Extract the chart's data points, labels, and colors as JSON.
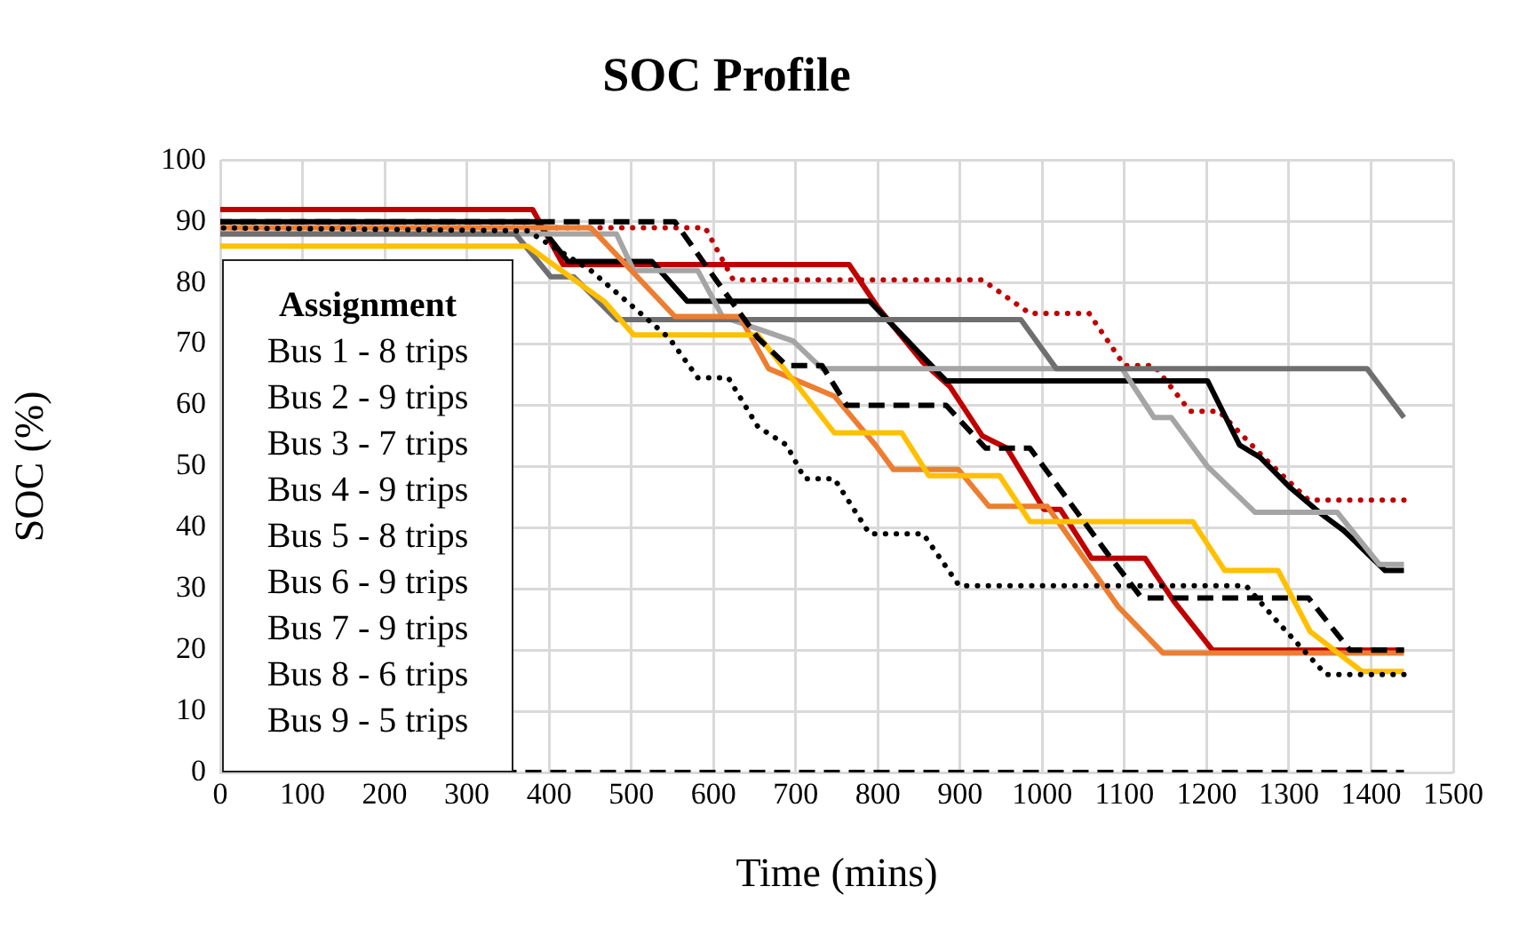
{
  "chart_data": {
    "type": "line",
    "title": "SOC Profile",
    "xlabel": "Time (mins)",
    "ylabel": "SOC (%)",
    "xlim": [
      0,
      1500
    ],
    "xticks": [
      0,
      100,
      200,
      300,
      400,
      500,
      600,
      700,
      800,
      900,
      1000,
      1100,
      1200,
      1300,
      1400,
      1500
    ],
    "ylim": [
      0,
      100
    ],
    "yticks": [
      0,
      10,
      20,
      30,
      40,
      50,
      60,
      70,
      80,
      90,
      100
    ],
    "grid": true,
    "marker": "none",
    "annotations": [
      "Assignment",
      "Bus 1 - 8 trips",
      "Bus 2 - 9 trips",
      "Bus 3 - 7 trips",
      "Bus 4 - 9 trips",
      "Bus 5 - 8 trips",
      "Bus 6 - 9 trips",
      "Bus 7 - 9 trips",
      "Bus 8 - 6 trips",
      "Bus 9 - 5 trips"
    ],
    "series": [
      {
        "color": "#c00000",
        "line_style": "solid",
        "x": [
          0,
          380,
          417,
          765,
          800,
          855,
          888,
          927,
          957,
          1002,
          1022,
          1060,
          1125,
          1160,
          1207,
          1440
        ],
        "values": [
          92,
          92,
          83,
          83,
          76,
          67,
          63,
          55,
          53,
          43,
          43,
          35,
          35,
          28,
          20,
          20
        ]
      },
      {
        "color": "#c00000",
        "line_style": "dotted",
        "x": [
          0,
          590,
          624,
          927,
          985,
          1057,
          1100,
          1136,
          1180,
          1215,
          1273,
          1324,
          1440
        ],
        "values": [
          89,
          89,
          80.5,
          80.5,
          75,
          75,
          66.5,
          66.5,
          59,
          59,
          51,
          44.5,
          44.5
        ]
      },
      {
        "color": "#000000",
        "line_style": "solid",
        "x": [
          0,
          385,
          423,
          525,
          568,
          790,
          883,
          1201,
          1240,
          1265,
          1302,
          1337,
          1367,
          1417,
          1440
        ],
        "values": [
          90,
          90,
          83.5,
          83.5,
          77,
          77,
          64,
          64,
          53.5,
          51.5,
          46.5,
          42.5,
          39.5,
          33,
          33
        ]
      },
      {
        "color": "#a5a5a5",
        "line_style": "solid",
        "x": [
          0,
          482,
          503,
          581,
          611,
          697,
          732,
          1097,
          1136,
          1157,
          1201,
          1259,
          1359,
          1410,
          1440
        ],
        "values": [
          88,
          88,
          82,
          82,
          74.5,
          70.5,
          66,
          66,
          58,
          58,
          50,
          42.5,
          42.5,
          34,
          34
        ]
      },
      {
        "color": "#6f6f6f",
        "line_style": "solid",
        "x": [
          0,
          359,
          402,
          430,
          482,
          974,
          1017,
          1395,
          1440
        ],
        "values": [
          88,
          88,
          81,
          81,
          74,
          74,
          66,
          66,
          58
        ]
      },
      {
        "color": "#ed7d31",
        "line_style": "solid",
        "x": [
          0,
          451,
          553,
          632,
          667,
          747,
          797,
          819,
          898,
          935,
          1006,
          1093,
          1147,
          1440
        ],
        "values": [
          89,
          89,
          74.5,
          74.5,
          66,
          61.5,
          53.5,
          49.5,
          49.5,
          43.5,
          43.5,
          27,
          19.5,
          19.5
        ]
      },
      {
        "color": "#ffc000",
        "line_style": "solid",
        "x": [
          0,
          374,
          467,
          503,
          654,
          747,
          829,
          862,
          948,
          985,
          1183,
          1222,
          1287,
          1326,
          1389,
          1440
        ],
        "values": [
          86,
          86,
          77,
          71.5,
          71.5,
          55.5,
          55.5,
          48.5,
          48.5,
          41,
          41,
          33,
          33,
          23,
          16.5,
          16.5
        ]
      },
      {
        "color": "#000000",
        "line_style": "dashed",
        "x": [
          0,
          553,
          603,
          654,
          689,
          732,
          762,
          883,
          931,
          985,
          1078,
          1121,
          1324,
          1374,
          1440
        ],
        "values": [
          90,
          90,
          80.5,
          71,
          66.5,
          66.5,
          60,
          60,
          53,
          53,
          36,
          28.5,
          28.5,
          20,
          20
        ]
      },
      {
        "color": "#000000",
        "line_style": "dotted",
        "x": [
          0,
          374,
          451,
          546,
          581,
          618,
          654,
          689,
          711,
          747,
          790,
          855,
          899,
          1248,
          1287,
          1345,
          1440
        ],
        "values": [
          89,
          88.5,
          82,
          71,
          64.5,
          64.5,
          56.5,
          53.5,
          48,
          48,
          39,
          39,
          30.5,
          30.5,
          24.5,
          16,
          16
        ]
      },
      {
        "color": "#000000",
        "line_style": "dashed",
        "x": [
          0,
          1440
        ],
        "values": [
          0,
          0
        ]
      }
    ]
  }
}
